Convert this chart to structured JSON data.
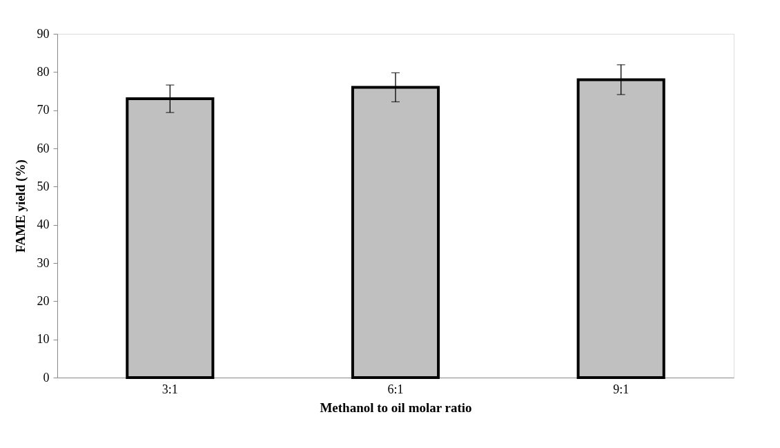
{
  "chart_data": {
    "type": "bar",
    "xlabel": "Methanol to oil molar ratio",
    "ylabel": "FAME yield (%)",
    "categories": [
      "3:1",
      "6:1",
      "9:1"
    ],
    "values": [
      73,
      76,
      78
    ],
    "errors": [
      3.6,
      3.8,
      3.9
    ],
    "color": "#c0c0c0",
    "ylim": [
      0,
      90
    ],
    "yticks": [
      0,
      10,
      20,
      30,
      40,
      50,
      60,
      70,
      80,
      90
    ],
    "grid": false
  }
}
